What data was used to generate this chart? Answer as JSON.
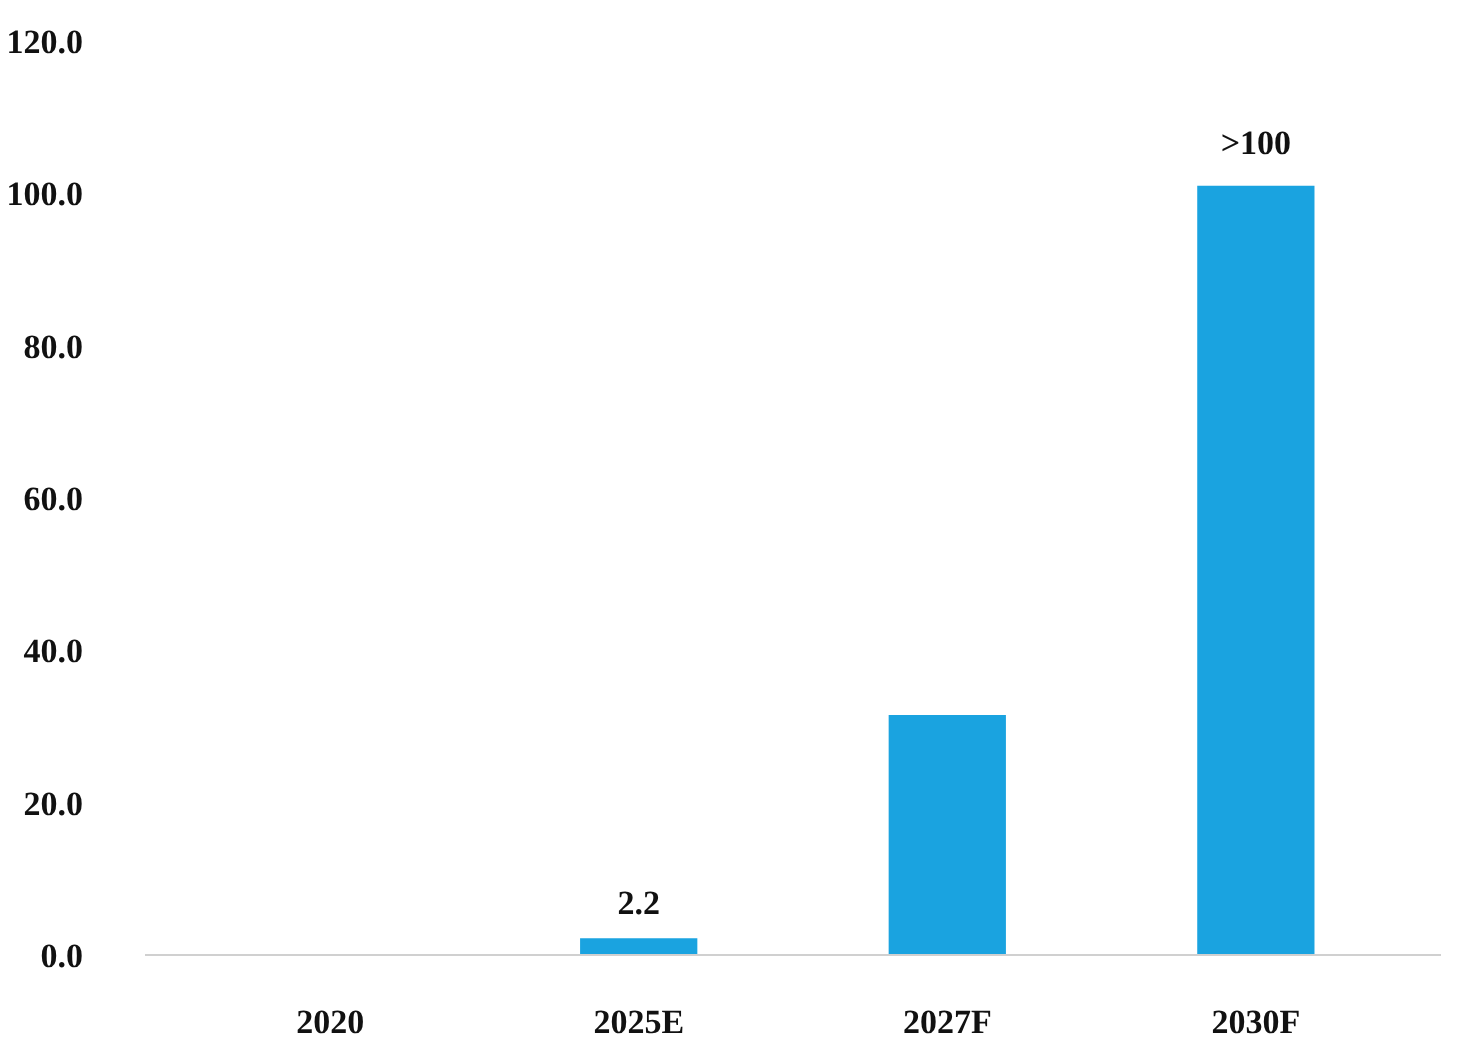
{
  "chart_data": {
    "type": "bar",
    "categories": [
      "2020",
      "2025E",
      "2027F",
      "2030F"
    ],
    "values": [
      0,
      2.2,
      31.5,
      101
    ],
    "color": "#1aa3e0",
    "value_labels": [
      null,
      "2.2",
      null,
      ">100"
    ],
    "ylim": [
      0,
      120
    ],
    "yticks": [
      {
        "value": 0,
        "label": "0.0"
      },
      {
        "value": 20,
        "label": "20.0"
      },
      {
        "value": 40,
        "label": "40.0"
      },
      {
        "value": 60,
        "label": "60.0"
      },
      {
        "value": 80,
        "label": "80.0"
      },
      {
        "value": 100,
        "label": "100.0"
      },
      {
        "value": 120,
        "label": "120.0"
      }
    ],
    "grid": false
  }
}
